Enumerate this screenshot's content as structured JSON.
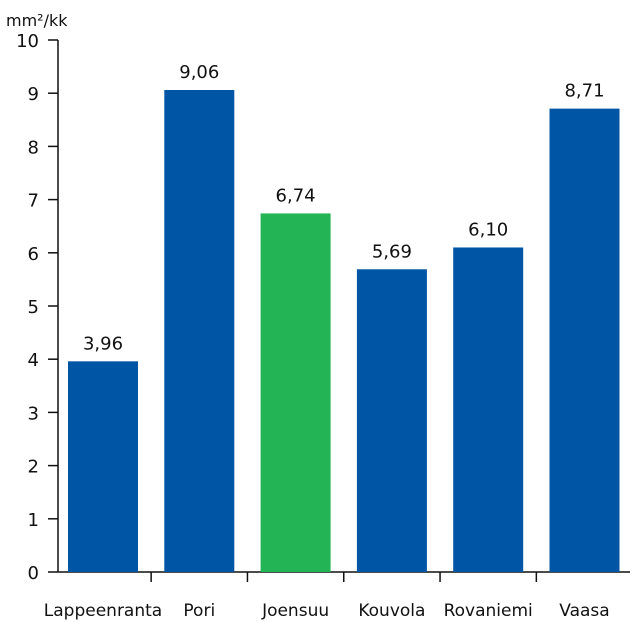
{
  "chart_data": {
    "type": "bar",
    "ylabel": "mm²/kk",
    "ylim": [
      0,
      10
    ],
    "yticks": [
      0,
      1,
      2,
      3,
      4,
      5,
      6,
      7,
      8,
      9,
      10
    ],
    "categories": [
      "Lappeenranta",
      "Pori",
      "Joensuu",
      "Kouvola",
      "Rovaniemi",
      "Vaasa"
    ],
    "values": [
      3.96,
      9.06,
      6.74,
      5.69,
      6.1,
      8.71
    ],
    "value_labels": [
      "3,96",
      "9,06",
      "6,74",
      "5,69",
      "6,10",
      "8,71"
    ],
    "highlight_category": "Joensuu",
    "colors": {
      "bar": "#0055a5",
      "highlight": "#22b455",
      "axis": "#111111"
    },
    "grid": false,
    "legend": "none"
  }
}
